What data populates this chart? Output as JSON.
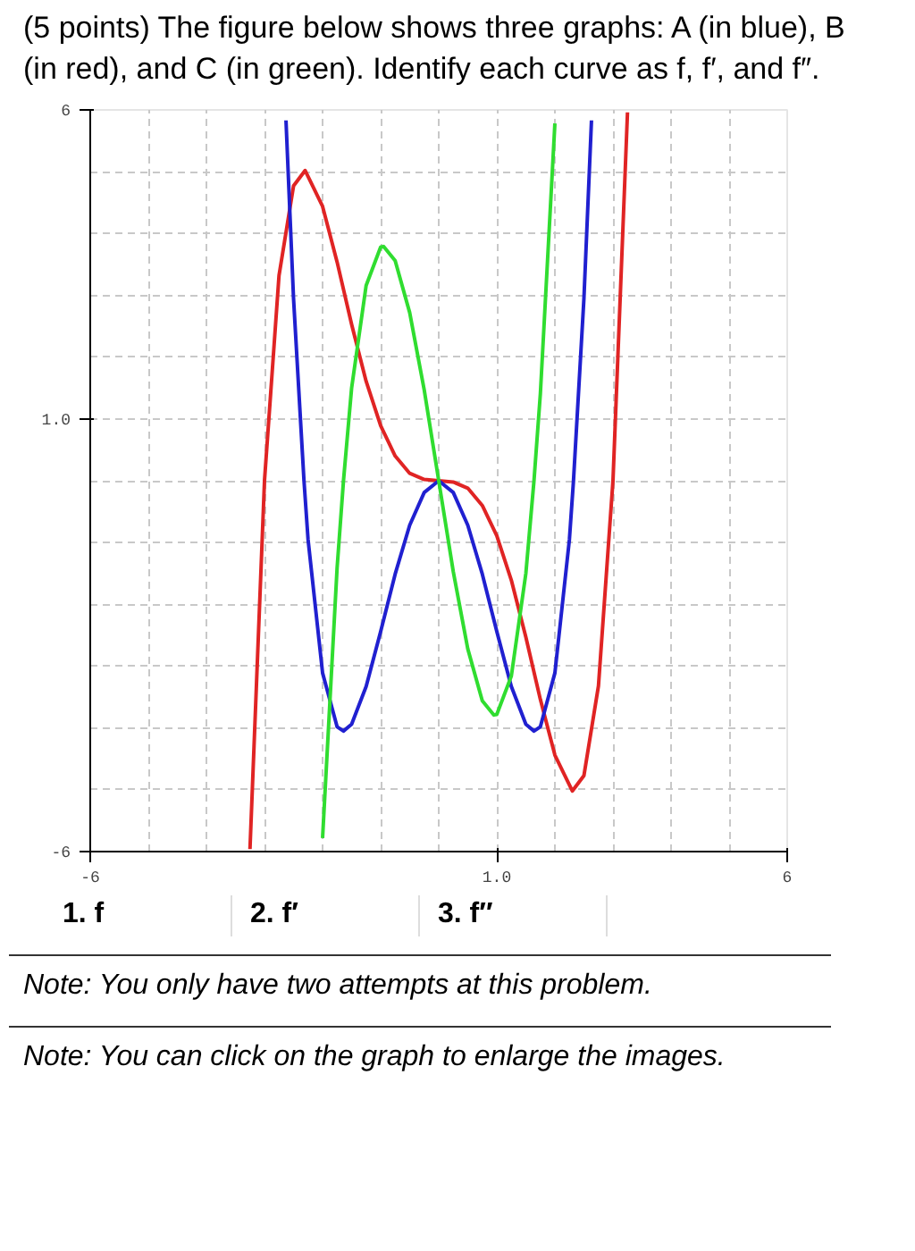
{
  "chart_data": {
    "type": "line",
    "title": "(5 points) The figure below shows three graphs: A (in blue), B (in red), and C (in green). Identify each curve as f, f′, and f″.",
    "xlim": [
      -6,
      6
    ],
    "ylim": [
      -6,
      6
    ],
    "xticks": [
      -6,
      {
        "value": 1,
        "label": "1.0"
      },
      6
    ],
    "yticks": [
      -6,
      {
        "value": 1,
        "label": "1.0"
      },
      6
    ],
    "grid": true,
    "marker": "none",
    "line_style": "solid",
    "series": [
      {
        "color": "#e02424",
        "x": [
          -3.25,
          -3.0,
          -2.75,
          -2.5,
          -2.3,
          -2.0,
          -1.75,
          -1.5,
          -1.25,
          -1.0,
          -0.75,
          -0.5,
          -0.25,
          0,
          0.25,
          0.5,
          0.75,
          1.0,
          1.25,
          1.5,
          1.75,
          2.0,
          2.3,
          2.5,
          2.75,
          3.0,
          3.25
        ],
        "values": [
          -5.96,
          0,
          3.32,
          4.77,
          5.02,
          4.44,
          3.54,
          2.53,
          1.61,
          0.89,
          0.4,
          0.12,
          0.02,
          0,
          -0.02,
          -0.12,
          -0.4,
          -0.89,
          -1.61,
          -2.53,
          -3.54,
          -4.44,
          -5.02,
          -4.77,
          -3.32,
          0,
          5.96
        ]
      },
      {
        "color": "#2020d0",
        "x": [
          -2.63,
          -2.5,
          -2.32,
          -2.25,
          -2.0,
          -1.75,
          -1.64,
          -1.5,
          -1.25,
          -1.0,
          -0.75,
          -0.5,
          -0.25,
          0,
          0.25,
          0.5,
          0.75,
          1.0,
          1.25,
          1.5,
          1.64,
          1.75,
          2.0,
          2.25,
          2.32,
          2.5,
          2.63
        ],
        "values": [
          5.83,
          2.95,
          0,
          -0.95,
          -3.11,
          -3.98,
          -4.05,
          -3.94,
          -3.33,
          -2.44,
          -1.51,
          -0.72,
          -0.19,
          0,
          -0.19,
          -0.72,
          -1.51,
          -2.44,
          -3.33,
          -3.94,
          -4.05,
          -3.98,
          -3.11,
          -0.95,
          0,
          2.95,
          5.83
        ]
      },
      {
        "color": "#30dd30",
        "x": [
          -2.0,
          -1.75,
          -1.64,
          -1.5,
          -1.25,
          -1.0,
          -0.95,
          -0.75,
          -0.5,
          -0.25,
          0,
          0.25,
          0.5,
          0.75,
          0.95,
          1.0,
          1.25,
          1.5,
          1.64,
          1.75,
          2.0
        ],
        "values": [
          -5.78,
          -1.41,
          0,
          1.5,
          3.16,
          3.78,
          3.79,
          3.56,
          2.72,
          1.47,
          0,
          -1.47,
          -2.72,
          -3.56,
          -3.79,
          -3.78,
          -3.16,
          -1.5,
          0,
          1.41,
          5.78
        ]
      }
    ],
    "annotations": [
      "1. f",
      "2. f′",
      "3. f″",
      "Note: You only have two attempts at this problem.",
      "Note: You can click on the graph to enlarge the images."
    ]
  }
}
